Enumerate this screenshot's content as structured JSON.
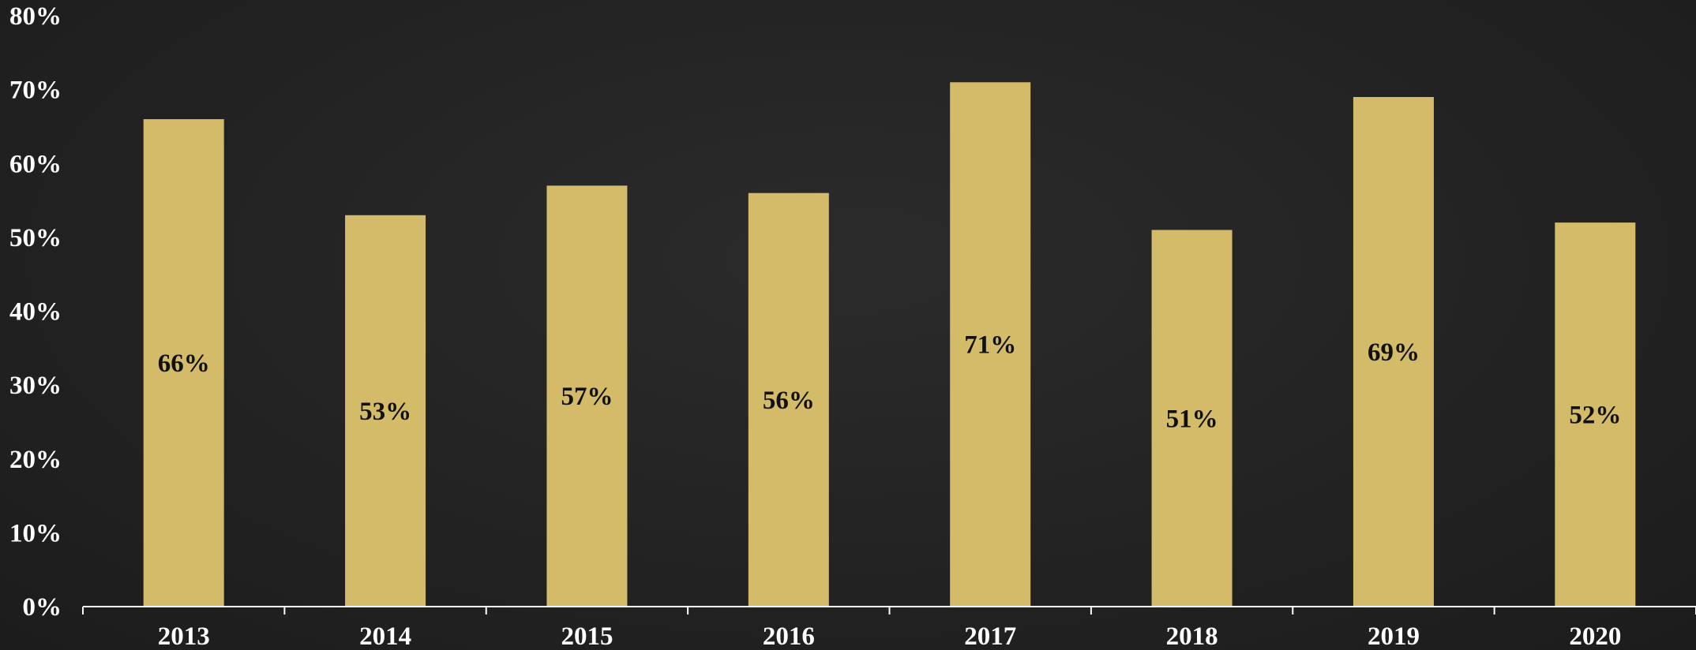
{
  "chart_data": {
    "type": "bar",
    "title": "",
    "xlabel": "",
    "ylabel": "",
    "categories": [
      "2013",
      "2014",
      "2015",
      "2016",
      "2017",
      "2018",
      "2019",
      "2020"
    ],
    "values": [
      66,
      53,
      57,
      56,
      71,
      51,
      69,
      52
    ],
    "data_labels": [
      "66%",
      "53%",
      "57%",
      "56%",
      "71%",
      "51%",
      "69%",
      "52%"
    ],
    "ylim": [
      0,
      80
    ],
    "y_ticks": [
      0,
      10,
      20,
      30,
      40,
      50,
      60,
      70,
      80
    ],
    "y_tick_labels": [
      "0%",
      "10%",
      "20%",
      "30%",
      "40%",
      "50%",
      "60%",
      "70%",
      "80%"
    ],
    "grid": false,
    "legend": "none",
    "colors": {
      "bar": "#D4BB6A",
      "axis": "#FFFFFF",
      "tick_text": "#FFFFFF",
      "data_label_text": "#111111"
    }
  }
}
